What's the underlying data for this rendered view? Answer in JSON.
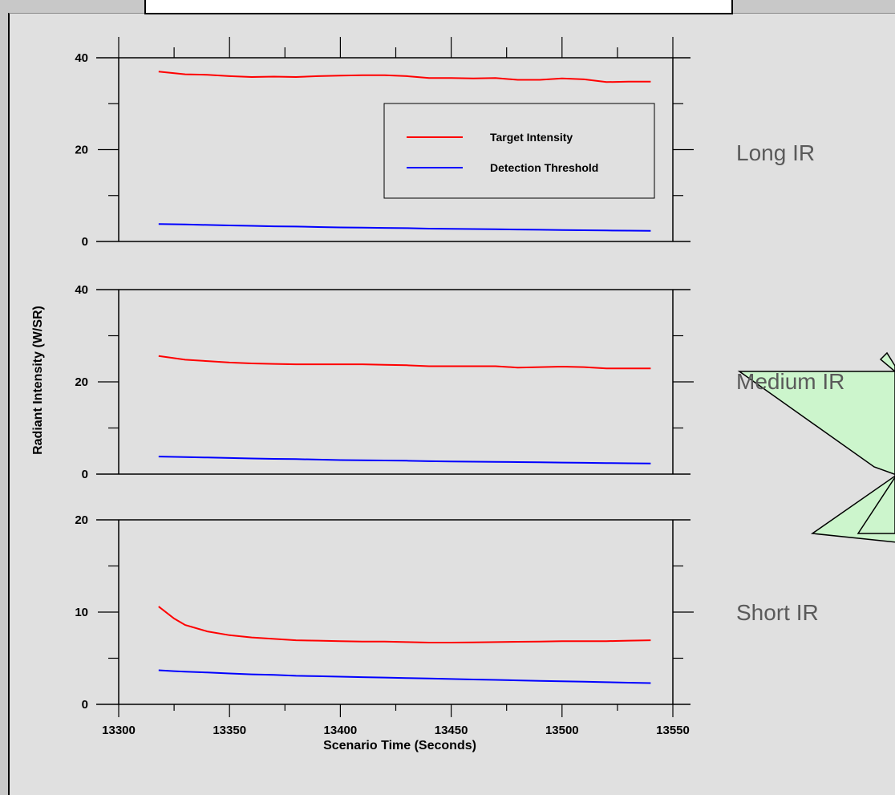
{
  "chart_data": [
    {
      "type": "line",
      "panel": "top",
      "side_label": "Long IR",
      "xlim": [
        13300,
        13550
      ],
      "ylim": [
        0,
        40
      ],
      "yticks": [
        0,
        20,
        40
      ],
      "x": [
        13318,
        13330,
        13340,
        13350,
        13360,
        13370,
        13380,
        13390,
        13400,
        13410,
        13420,
        13430,
        13440,
        13450,
        13460,
        13470,
        13480,
        13490,
        13500,
        13510,
        13520,
        13530,
        13540
      ],
      "series": [
        {
          "name": "Target Intensity",
          "color": "#ff0000",
          "values": [
            37.0,
            36.4,
            36.3,
            36.0,
            35.8,
            35.9,
            35.8,
            36.0,
            36.1,
            36.2,
            36.2,
            36.0,
            35.6,
            35.6,
            35.5,
            35.6,
            35.2,
            35.2,
            35.5,
            35.3,
            34.7,
            34.8,
            34.8
          ]
        },
        {
          "color": "#0000ff",
          "values": [
            3.8,
            3.7,
            3.6,
            3.5,
            3.4,
            3.3,
            3.25,
            3.15,
            3.05,
            3.0,
            2.95,
            2.9,
            2.8,
            2.75,
            2.7,
            2.65,
            2.6,
            2.55,
            2.5,
            2.45,
            2.4,
            2.35,
            2.3
          ]
        }
      ]
    },
    {
      "type": "line",
      "panel": "middle",
      "side_label": "Medium IR",
      "xlim": [
        13300,
        13550
      ],
      "ylim": [
        0,
        40
      ],
      "yticks": [
        0,
        20,
        40
      ],
      "x": [
        13318,
        13330,
        13340,
        13350,
        13360,
        13370,
        13380,
        13390,
        13400,
        13410,
        13420,
        13430,
        13440,
        13450,
        13460,
        13470,
        13480,
        13490,
        13500,
        13510,
        13520,
        13530,
        13540
      ],
      "series": [
        {
          "color": "#ff0000",
          "values": [
            25.6,
            24.8,
            24.5,
            24.2,
            24.0,
            23.9,
            23.8,
            23.8,
            23.8,
            23.8,
            23.7,
            23.6,
            23.4,
            23.4,
            23.4,
            23.4,
            23.1,
            23.2,
            23.3,
            23.2,
            22.9,
            22.9,
            22.9
          ]
        },
        {
          "color": "#0000ff",
          "values": [
            3.8,
            3.7,
            3.6,
            3.5,
            3.4,
            3.3,
            3.25,
            3.15,
            3.05,
            3.0,
            2.95,
            2.9,
            2.8,
            2.75,
            2.7,
            2.65,
            2.6,
            2.55,
            2.5,
            2.45,
            2.4,
            2.35,
            2.3
          ]
        }
      ]
    },
    {
      "type": "line",
      "panel": "bottom",
      "side_label": "Short IR",
      "xlim": [
        13300,
        13550
      ],
      "ylim": [
        0,
        20
      ],
      "yticks": [
        0,
        10,
        20
      ],
      "xticks": [
        13300,
        13350,
        13400,
        13450,
        13500,
        13550
      ],
      "xlabel": "Scenario Time (Seconds)",
      "x": [
        13318,
        13325,
        13330,
        13340,
        13350,
        13360,
        13370,
        13380,
        13390,
        13400,
        13410,
        13420,
        13430,
        13440,
        13450,
        13460,
        13470,
        13480,
        13490,
        13500,
        13510,
        13520,
        13530,
        13540
      ],
      "series": [
        {
          "color": "#ff0000",
          "values": [
            10.6,
            9.3,
            8.6,
            7.9,
            7.5,
            7.25,
            7.1,
            6.95,
            6.9,
            6.85,
            6.8,
            6.8,
            6.75,
            6.7,
            6.7,
            6.72,
            6.75,
            6.78,
            6.8,
            6.85,
            6.85,
            6.85,
            6.9,
            6.95
          ]
        },
        {
          "color": "#0000ff",
          "values": [
            3.7,
            3.6,
            3.55,
            3.45,
            3.35,
            3.25,
            3.2,
            3.1,
            3.05,
            3.0,
            2.95,
            2.9,
            2.85,
            2.8,
            2.75,
            2.7,
            2.65,
            2.6,
            2.55,
            2.5,
            2.45,
            2.4,
            2.35,
            2.3
          ]
        }
      ]
    }
  ],
  "shared": {
    "ylabel": "Radiant Intensity (W/SR)",
    "legend": [
      {
        "label": "Target Intensity",
        "color": "#ff0000"
      },
      {
        "label": "Detection Threshold",
        "color": "#0000ff"
      }
    ]
  },
  "annotation": {
    "fill": "#ccf5cc",
    "stroke": "#000000"
  }
}
